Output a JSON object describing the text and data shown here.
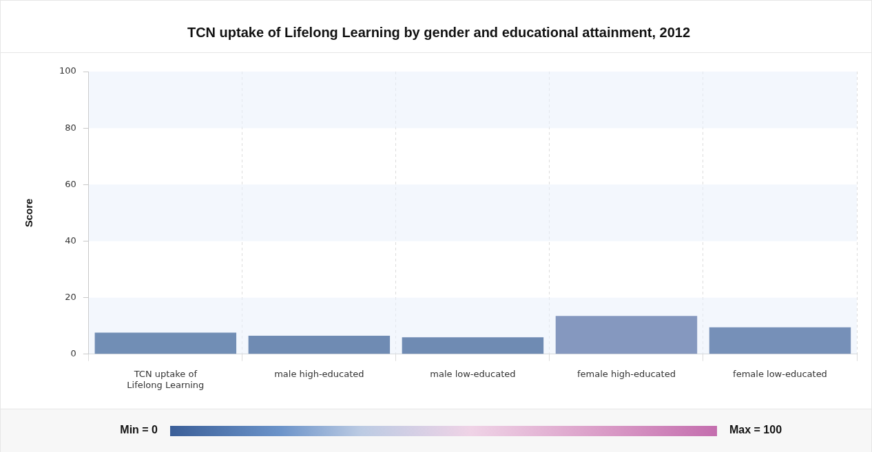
{
  "chart_data": {
    "type": "bar",
    "title": "TCN uptake of Lifelong Learning by gender and educational attainment, 2012",
    "ylabel": "Score",
    "categories": [
      "TCN uptake of Lifelong Learning",
      "male high-educated",
      "male low-educated",
      "female high-educated",
      "female low-educated"
    ],
    "values": [
      7.6,
      6.5,
      6.0,
      13.5,
      9.5
    ],
    "colors": [
      "#718eb5",
      "#6f8bb3",
      "#6f8bb3",
      "#8598bf",
      "#7690b8"
    ],
    "ylim": [
      0,
      100
    ],
    "yticks": [
      0,
      20,
      40,
      60,
      80,
      100
    ],
    "annotations": [
      "Min = 0",
      "Max = 100"
    ],
    "grid": true,
    "legend": false
  }
}
